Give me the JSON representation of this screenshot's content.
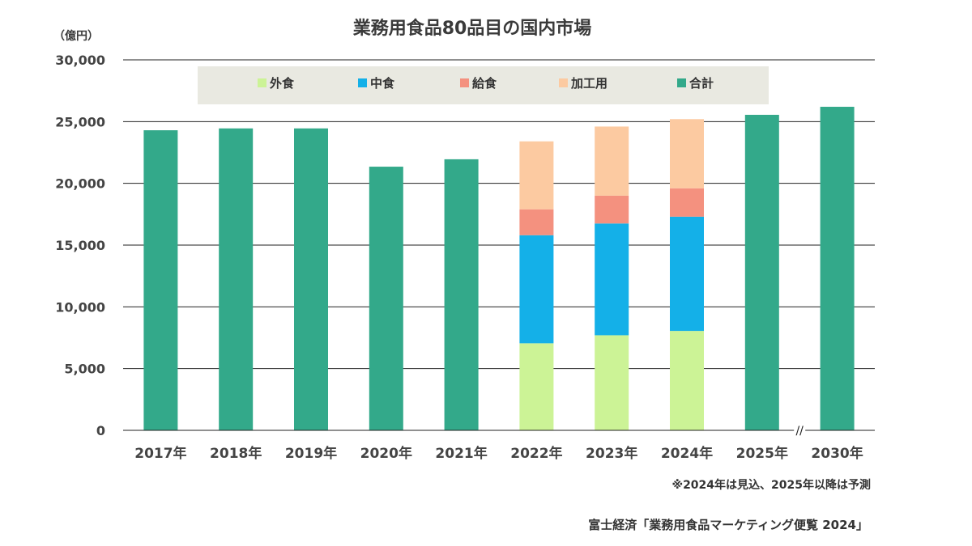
{
  "chart_data": {
    "type": "bar",
    "title": "業務用食品80品目の国内市場",
    "ylabel": "（億円）",
    "ylim": [
      0,
      30000
    ],
    "yticks": [
      "0",
      "5,000",
      "10,000",
      "15,000",
      "20,000",
      "25,000",
      "30,000"
    ],
    "categories": [
      "2017年",
      "2018年",
      "2019年",
      "2020年",
      "2021年",
      "2022年",
      "2023年",
      "2024年",
      "2025年",
      "2030年"
    ],
    "grid": true,
    "legend_position": "top",
    "axis_break": "//",
    "series": [
      {
        "name": "外食",
        "color": "#ccf396",
        "values": [
          null,
          null,
          null,
          null,
          null,
          7050,
          7700,
          8050,
          null,
          null
        ]
      },
      {
        "name": "中食",
        "color": "#14b0e8",
        "values": [
          null,
          null,
          null,
          null,
          null,
          8750,
          9050,
          9250,
          null,
          null
        ]
      },
      {
        "name": "給食",
        "color": "#f4917f",
        "values": [
          null,
          null,
          null,
          null,
          null,
          2100,
          2250,
          2300,
          null,
          null
        ]
      },
      {
        "name": "加工用",
        "color": "#fccaa1",
        "values": [
          null,
          null,
          null,
          null,
          null,
          5500,
          5600,
          5600,
          null,
          null
        ]
      },
      {
        "name": "合計",
        "color": "#33a98a",
        "values": [
          24300,
          24450,
          24450,
          21350,
          21950,
          null,
          null,
          null,
          25550,
          26200
        ]
      }
    ],
    "note": "※2024年は見込、2025年以降は予測",
    "source": "富士経済「業務用食品マーケティング便覧 2024」"
  }
}
